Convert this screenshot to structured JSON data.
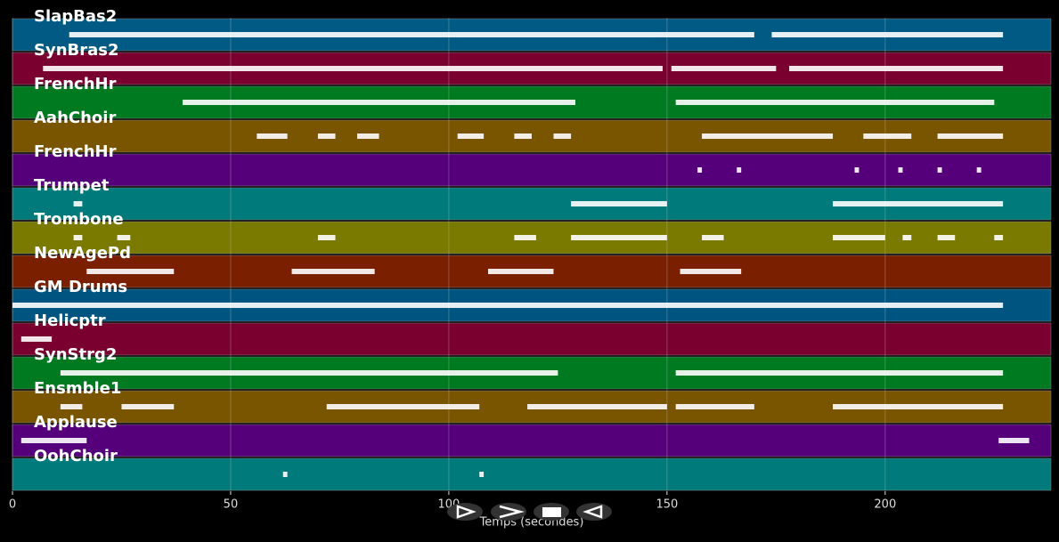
{
  "chart_data": {
    "type": "pianoroll",
    "x_label": "Temps (secondes)",
    "xlim": [
      0,
      238
    ],
    "xticks": [
      0,
      50,
      100,
      150,
      200
    ],
    "grid": true,
    "tracks": [
      {
        "name": "SlapBas2",
        "color": "#005a84",
        "segments": [
          [
            13,
            170
          ],
          [
            174,
            227
          ]
        ]
      },
      {
        "name": "SynBras2",
        "color": "#7a0030",
        "segments": [
          [
            7,
            149
          ],
          [
            151,
            175
          ],
          [
            178,
            227
          ]
        ]
      },
      {
        "name": "FrenchHr",
        "color": "#007a20",
        "segments": [
          [
            39,
            129
          ],
          [
            152,
            225
          ]
        ]
      },
      {
        "name": "AahChoir",
        "color": "#7a5500",
        "segments": [
          [
            56,
            63
          ],
          [
            70,
            74
          ],
          [
            79,
            84
          ],
          [
            102,
            108
          ],
          [
            115,
            119
          ],
          [
            124,
            128
          ],
          [
            158,
            188
          ],
          [
            195,
            206
          ],
          [
            212,
            227
          ]
        ]
      },
      {
        "name": "FrenchHr",
        "color": "#55007a",
        "segments": [
          [
            157,
            158
          ],
          [
            166,
            167
          ],
          [
            193,
            194
          ],
          [
            203,
            204
          ],
          [
            212,
            213
          ],
          [
            221,
            222
          ]
        ]
      },
      {
        "name": "Trumpet",
        "color": "#007a7a",
        "segments": [
          [
            14,
            16
          ],
          [
            128,
            150
          ],
          [
            188,
            227
          ]
        ]
      },
      {
        "name": "Trombone",
        "color": "#7a7a00",
        "segments": [
          [
            14,
            16
          ],
          [
            24,
            27
          ],
          [
            70,
            74
          ],
          [
            115,
            120
          ],
          [
            128,
            150
          ],
          [
            158,
            163
          ],
          [
            188,
            200
          ],
          [
            204,
            206
          ],
          [
            212,
            216
          ],
          [
            225,
            227
          ]
        ]
      },
      {
        "name": "NewAgePd",
        "color": "#7a2000",
        "segments": [
          [
            17,
            37
          ],
          [
            64,
            83
          ],
          [
            109,
            124
          ],
          [
            153,
            167
          ]
        ]
      },
      {
        "name": "GM Drums",
        "color": "#005580",
        "segments": [
          [
            0,
            227
          ]
        ]
      },
      {
        "name": "Helicptr",
        "color": "#7a0030",
        "segments": [
          [
            2,
            9
          ]
        ]
      },
      {
        "name": "SynStrg2",
        "color": "#007a20",
        "segments": [
          [
            11,
            125
          ],
          [
            152,
            227
          ]
        ]
      },
      {
        "name": "Ensmble1",
        "color": "#7a5500",
        "segments": [
          [
            11,
            16
          ],
          [
            25,
            37
          ],
          [
            72,
            107
          ],
          [
            118,
            150
          ],
          [
            152,
            170
          ],
          [
            188,
            227
          ]
        ]
      },
      {
        "name": "Applause",
        "color": "#55007a",
        "segments": [
          [
            2,
            17
          ],
          [
            226,
            233
          ]
        ]
      },
      {
        "name": "OohChoir",
        "color": "#007a7a",
        "segments": [
          [
            62,
            63
          ],
          [
            107,
            108
          ]
        ]
      }
    ]
  }
}
